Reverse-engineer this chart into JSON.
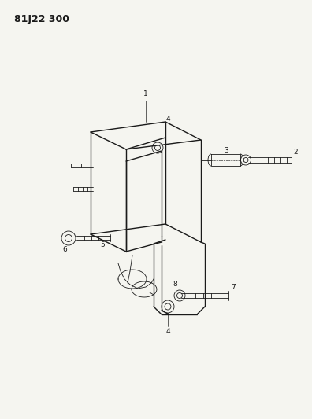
{
  "title": "81J22 300",
  "bg_color": "#f5f5f0",
  "line_color": "#1a1a1a",
  "label_color": "#1a1a1a",
  "figsize": [
    3.96,
    5.33
  ],
  "dpi": 100,
  "lw_main": 1.0,
  "lw_thin": 0.6,
  "label_fs": 6.5,
  "title_fs": 9
}
